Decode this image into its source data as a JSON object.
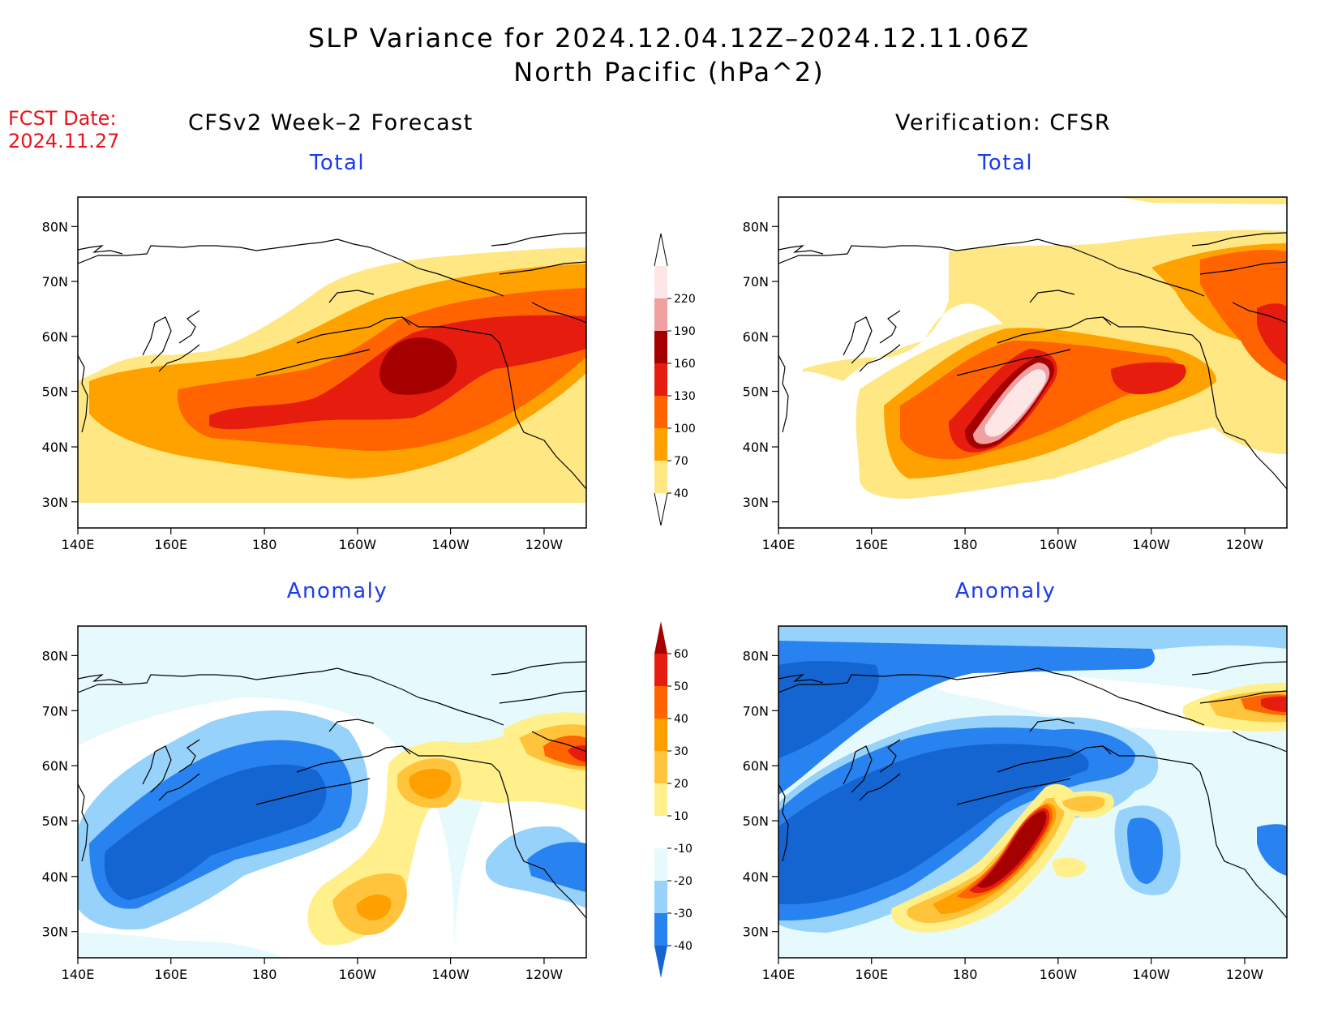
{
  "title": {
    "line1": "SLP Variance for 2024.12.04.12Z–2024.12.11.06Z",
    "line2": "North Pacific (hPa^2)"
  },
  "fcst": {
    "label": "FCST Date:",
    "date": "2024.11.27"
  },
  "headings": {
    "left": "CFSv2 Week–2 Forecast",
    "right": "Verification: CFSR"
  },
  "panels": {
    "forecast_total": "Total",
    "verif_total": "Total",
    "forecast_anomaly": "Anomaly",
    "verif_anomaly": "Anomaly"
  },
  "axes": {
    "lat_labels": [
      "80N",
      "70N",
      "60N",
      "50N",
      "40N",
      "30N"
    ],
    "lon_labels": [
      "140E",
      "160E",
      "180",
      "160W",
      "140W",
      "120W"
    ]
  },
  "colorbar_total": {
    "labels": [
      "40",
      "70",
      "100",
      "130",
      "160",
      "190",
      "220"
    ],
    "colors": [
      "#ffe884",
      "#ffa200",
      "#ff6400",
      "#e61c0f",
      "#a50000",
      "#f0a0a0",
      "#fde6e6"
    ]
  },
  "colorbar_anomaly": {
    "labels": [
      "-40",
      "-30",
      "-20",
      "-10",
      "10",
      "20",
      "30",
      "40",
      "50",
      "60"
    ],
    "colors": [
      "#1464d2",
      "#2882f0",
      "#96d2fa",
      "#e6fafe",
      "#ffffff",
      "#fff08c",
      "#ffc43c",
      "#ffa000",
      "#ff6400",
      "#e61c0f",
      "#a50000"
    ]
  },
  "colors": {
    "land_outline": "#000000",
    "title_red": "#e8141a",
    "subhead_blue": "#1a3cf0"
  }
}
